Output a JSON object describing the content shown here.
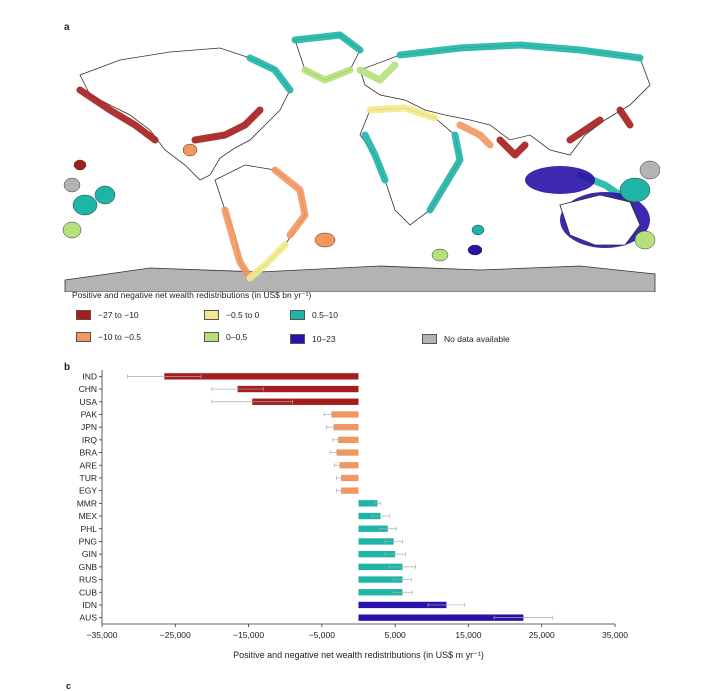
{
  "panel_a_label": "a",
  "panel_b_label": "b",
  "panel_c_label": "c",
  "legend": {
    "title": "Positive and negative net wealth redistributions (in US$ bn yr⁻¹)",
    "items": [
      {
        "label": "−27 to −10",
        "color": "#a51d1d"
      },
      {
        "label": "−10 to −0.5",
        "color": "#f2975f"
      },
      {
        "label": "−0.5 to 0",
        "color": "#f3e98a"
      },
      {
        "label": "0–0.5",
        "color": "#b5e07a"
      },
      {
        "label": "0.5–10",
        "color": "#1fb5a6"
      },
      {
        "label": "10–23",
        "color": "#2a11a8"
      },
      {
        "label": "No data available",
        "color": "#b3b3b3"
      }
    ]
  },
  "map_colors": {
    "ocean": "#ffffff",
    "land_outline": "#333333",
    "antarctica": "#b3b3b3"
  },
  "chart_data": {
    "type": "bar",
    "orientation": "horizontal",
    "xlabel": "Positive and negative net wealth redistributions (in US$ m yr⁻¹)",
    "xlim": [
      -35000,
      35000
    ],
    "xticks": [
      -35000,
      -25000,
      -15000,
      -5000,
      5000,
      15000,
      25000,
      35000
    ],
    "xtick_labels": [
      "−35,000",
      "−25,000",
      "−15,000",
      "−5,000",
      "5,000",
      "15,000",
      "25,000",
      "35,000"
    ],
    "categories": [
      "IND",
      "CHN",
      "USA",
      "PAK",
      "JPN",
      "IRQ",
      "BRA",
      "ARE",
      "TUR",
      "EGY",
      "MMR",
      "MEX",
      "PHL",
      "PNG",
      "GIN",
      "GNB",
      "RUS",
      "CUB",
      "IDN",
      "AUS"
    ],
    "values": [
      -26500,
      -16500,
      -14500,
      -3700,
      -3400,
      -2800,
      -3000,
      -2600,
      -2400,
      -2400,
      2600,
      3000,
      4000,
      4800,
      5000,
      6000,
      6000,
      6000,
      12000,
      22500
    ],
    "errors": [
      5000,
      3500,
      5500,
      1000,
      1000,
      700,
      900,
      700,
      600,
      600,
      400,
      1200,
      1200,
      1200,
      1400,
      1800,
      1200,
      1300,
      2500,
      4000
    ],
    "colors": [
      "#a51d1d",
      "#a51d1d",
      "#a51d1d",
      "#f2975f",
      "#f2975f",
      "#f2975f",
      "#f2975f",
      "#f2975f",
      "#f2975f",
      "#f2975f",
      "#1fb5a6",
      "#1fb5a6",
      "#1fb5a6",
      "#1fb5a6",
      "#1fb5a6",
      "#1fb5a6",
      "#1fb5a6",
      "#1fb5a6",
      "#2a11a8",
      "#2a11a8"
    ]
  }
}
